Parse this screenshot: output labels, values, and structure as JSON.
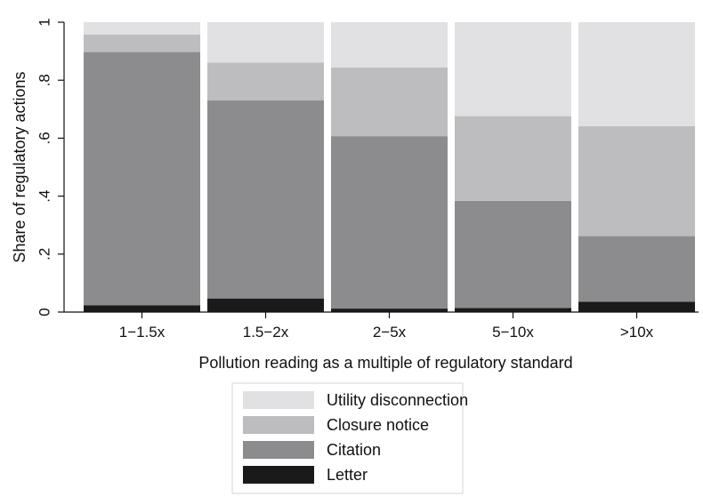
{
  "chart_data": {
    "type": "bar",
    "stacked": true,
    "categories": [
      "1−1.5x",
      "1.5−2x",
      "2−5x",
      "5−10x",
      ">10x"
    ],
    "series": [
      {
        "name": "Letter",
        "color": "#1a1a1a",
        "values": [
          0.023,
          0.047,
          0.012,
          0.014,
          0.036
        ]
      },
      {
        "name": "Citation",
        "color": "#8c8c8e",
        "values": [
          0.874,
          0.683,
          0.595,
          0.37,
          0.226
        ]
      },
      {
        "name": "Closure notice",
        "color": "#bdbdbf",
        "values": [
          0.06,
          0.131,
          0.237,
          0.292,
          0.379
        ]
      },
      {
        "name": "Utility disconnection",
        "color": "#e1e1e3",
        "values": [
          0.043,
          0.139,
          0.156,
          0.324,
          0.359
        ]
      }
    ],
    "xlabel": "Pollution reading as a multiple of regulatory standard",
    "ylabel": "Share of regulatory actions",
    "ylim": [
      0,
      1
    ],
    "yticks": [
      0,
      0.2,
      0.4,
      0.6,
      0.8,
      1
    ],
    "ytick_labels": [
      "0",
      ".2",
      ".4",
      ".6",
      ".8",
      "1"
    ],
    "grid": false,
    "legend": {
      "placement": "bottom-center",
      "order": [
        "Utility disconnection",
        "Closure notice",
        "Citation",
        "Letter"
      ]
    }
  }
}
